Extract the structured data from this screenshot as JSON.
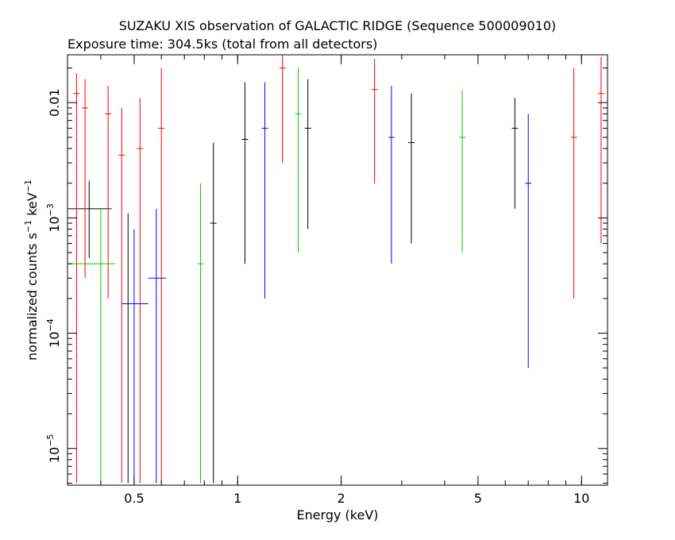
{
  "chart_data": {
    "type": "scatter",
    "title": "SUZAKU XIS observation of GALACTIC RIDGE (Sequence 500009010)",
    "subtitle": "Exposure time: 304.5ks (total from all detectors)",
    "xlabel": "Energy (keV)",
    "ylabel": {
      "base": "normalized counts s",
      "sup1": "−1",
      "mid": " keV",
      "sup2": "−1"
    },
    "x_scale": "log",
    "y_scale": "log",
    "xlim": [
      0.32,
      11.9
    ],
    "ylim": [
      4.8e-06,
      0.026
    ],
    "x_ticks": [
      {
        "value": 0.5,
        "label": "0.5"
      },
      {
        "value": 1,
        "label": "1"
      },
      {
        "value": 2,
        "label": "2"
      },
      {
        "value": 5,
        "label": "5"
      },
      {
        "value": 10,
        "label": "10"
      }
    ],
    "y_ticks": [
      {
        "value": 1e-05,
        "base": "10",
        "exp": "−5"
      },
      {
        "value": 0.0001,
        "base": "10",
        "exp": "−4"
      },
      {
        "value": 0.001,
        "base": "10",
        "exp": "−3"
      },
      {
        "value": 0.01,
        "base": "0.01",
        "exp": ""
      }
    ],
    "grid": false,
    "series_colors": [
      "#000000",
      "#ff0000",
      "#00cc00",
      "#0000ff"
    ],
    "series": [
      {
        "color": "#000000",
        "points": [
          {
            "x": 0.37,
            "xerr": [
              0.32,
              0.43
            ],
            "y": 0.0012,
            "ylo": 0.00045,
            "yhi": 0.0021
          },
          {
            "x": 0.48,
            "y": 0.00018,
            "ylo": 5e-06,
            "yhi": 0.0011
          },
          {
            "x": 0.85,
            "y": 0.0009,
            "ylo": 5e-06,
            "yhi": 0.0045
          },
          {
            "x": 1.05,
            "y": 0.0048,
            "ylo": 0.0004,
            "yhi": 0.015
          },
          {
            "x": 1.6,
            "y": 0.006,
            "ylo": 0.0008,
            "yhi": 0.016
          },
          {
            "x": 3.2,
            "y": 0.0045,
            "ylo": 0.0006,
            "yhi": 0.012
          },
          {
            "x": 6.4,
            "y": 0.006,
            "ylo": 0.0012,
            "yhi": 0.011
          }
        ]
      },
      {
        "color": "#ff0000",
        "points": [
          {
            "x": 0.34,
            "y": 0.012,
            "ylo": 5e-06,
            "yhi": 0.018
          },
          {
            "x": 0.36,
            "y": 0.009,
            "ylo": 0.0003,
            "yhi": 0.016
          },
          {
            "x": 0.42,
            "y": 0.008,
            "ylo": 0.0002,
            "yhi": 0.014
          },
          {
            "x": 0.46,
            "y": 0.0035,
            "ylo": 5e-06,
            "yhi": 0.009
          },
          {
            "x": 0.52,
            "y": 0.004,
            "ylo": 5e-06,
            "yhi": 0.011
          },
          {
            "x": 0.6,
            "y": 0.006,
            "ylo": 5e-06,
            "yhi": 0.02
          },
          {
            "x": 1.35,
            "y": 0.02,
            "ylo": 0.003,
            "yhi": 0.026
          },
          {
            "x": 2.5,
            "y": 0.013,
            "ylo": 0.002,
            "yhi": 0.024
          },
          {
            "x": 9.5,
            "y": 0.005,
            "ylo": 0.0002,
            "yhi": 0.02
          },
          {
            "x": 11.4,
            "y": 0.012,
            "ylo": 0.0006,
            "yhi": 0.025
          }
        ]
      },
      {
        "color": "#00cc00",
        "points": [
          {
            "x": 0.4,
            "xerr": [
              0.32,
              0.44
            ],
            "y": 0.0004,
            "ylo": 5e-06,
            "yhi": 0.0012
          },
          {
            "x": 0.78,
            "y": 0.0004,
            "ylo": 5e-06,
            "yhi": 0.002
          },
          {
            "x": 1.5,
            "y": 0.008,
            "ylo": 0.0005,
            "yhi": 0.02
          },
          {
            "x": 4.5,
            "y": 0.005,
            "ylo": 0.0005,
            "yhi": 0.013
          }
        ]
      },
      {
        "color": "#0000ff",
        "points": [
          {
            "x": 0.5,
            "xerr": [
              0.46,
              0.55
            ],
            "y": 0.00018,
            "ylo": 5e-06,
            "yhi": 0.0008
          },
          {
            "x": 0.58,
            "xerr": [
              0.55,
              0.62
            ],
            "y": 0.0003,
            "ylo": 5e-06,
            "yhi": 0.0012
          },
          {
            "x": 1.2,
            "y": 0.006,
            "ylo": 0.0002,
            "yhi": 0.015
          },
          {
            "x": 2.8,
            "y": 0.005,
            "ylo": 0.0004,
            "yhi": 0.014
          },
          {
            "x": 7.0,
            "y": 0.002,
            "ylo": 5e-05,
            "yhi": 0.008
          }
        ]
      }
    ]
  }
}
